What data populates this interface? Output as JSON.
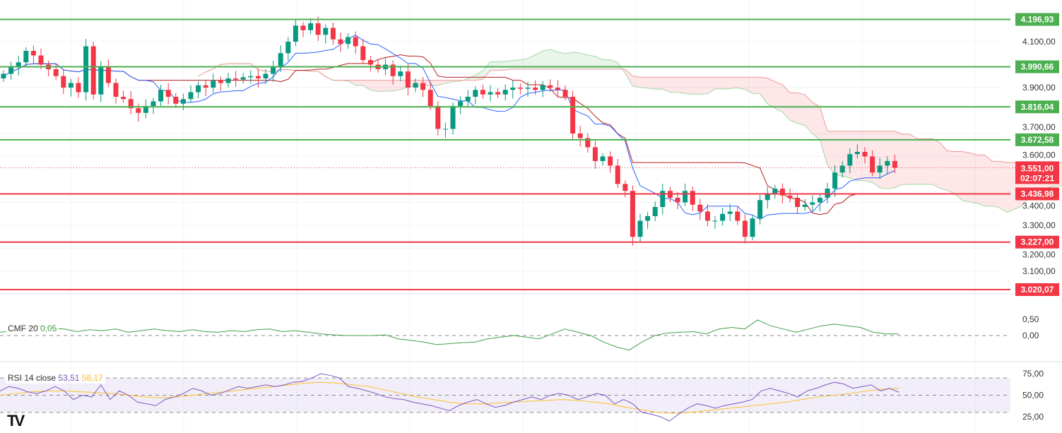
{
  "chart_data": {
    "type": "candlestick",
    "price_axis": {
      "ticks": [
        4100,
        3900,
        3700,
        3600,
        3400,
        3300,
        3200,
        3100
      ],
      "tick_labels": [
        "4.100,00",
        "3.900,00",
        "3.700,00",
        "3.600,00",
        "3.400,00",
        "3.300,00",
        "3.200,00",
        "3.100,00"
      ]
    },
    "closes": [
      3960,
      3990,
      4010,
      4060,
      4040,
      4000,
      3980,
      3950,
      3900,
      3920,
      3880,
      4080,
      3870,
      3990,
      3920,
      3860,
      3850,
      3810,
      3790,
      3820,
      3840,
      3890,
      3860,
      3830,
      3850,
      3880,
      3910,
      3900,
      3930,
      3920,
      3940,
      3935,
      3945,
      3950,
      3940,
      3960,
      3990,
      4050,
      4100,
      4170,
      4150,
      4180,
      4130,
      4160,
      4110,
      4090,
      4120,
      4080,
      4020,
      4000,
      3980,
      4000,
      3950,
      3970,
      3900,
      3920,
      3890,
      3820,
      3720,
      3720,
      3820,
      3840,
      3860,
      3890,
      3870,
      3880,
      3870,
      3890,
      3900,
      3895,
      3900,
      3890,
      3910,
      3900,
      3890,
      3860,
      3700,
      3680,
      3640,
      3580,
      3600,
      3560,
      3480,
      3450,
      3250,
      3320,
      3340,
      3380,
      3450,
      3420,
      3400,
      3450,
      3390,
      3360,
      3320,
      3320,
      3350,
      3360,
      3320,
      3250,
      3330,
      3410,
      3440,
      3460,
      3430,
      3420,
      3380,
      3390,
      3400,
      3420,
      3460,
      3530,
      3560,
      3610,
      3620,
      3600,
      3530,
      3560,
      3580,
      3551
    ],
    "levels": [
      {
        "value": 4196.93,
        "label": "4.196,93",
        "color": "#4caf50"
      },
      {
        "value": 3990.66,
        "label": "3.990,66",
        "color": "#4caf50"
      },
      {
        "value": 3816.04,
        "label": "3.816,04",
        "color": "#4caf50"
      },
      {
        "value": 3672.58,
        "label": "3.672,58",
        "color": "#4caf50"
      },
      {
        "value": 3436.98,
        "label": "3.436,98",
        "color": "#f23645"
      },
      {
        "value": 3227.0,
        "label": "3.227,00",
        "color": "#f23645"
      },
      {
        "value": 3020.07,
        "label": "3.020,07",
        "color": "#f23645"
      }
    ],
    "current_price": {
      "value": 3551,
      "label": "3.551,00",
      "countdown": "02:07:21",
      "color": "#f23645"
    },
    "cmf": {
      "title": "CMF 20",
      "value_label": "0,05",
      "ticks": [
        "0,50",
        "0,00"
      ],
      "values": [
        0.1,
        0.15,
        0.2,
        0.3,
        0.22,
        0.2,
        0.12,
        0.18,
        0.15,
        0.2,
        0.1,
        0.15,
        0.2,
        0.15,
        0.12,
        0.18,
        0.12,
        0.1,
        0.15,
        0.12,
        0.18,
        0.2,
        0.12,
        0.15,
        0.1,
        0.05,
        0.02,
        0.0,
        0.0,
        0.0,
        0.02,
        -0.1,
        -0.15,
        -0.2,
        -0.28,
        -0.25,
        -0.22,
        -0.2,
        -0.1,
        -0.05,
        0.0,
        -0.05,
        -0.1,
        0.05,
        0.2,
        0.1,
        0.0,
        -0.2,
        -0.35,
        -0.45,
        -0.2,
        0.0,
        0.08,
        0.1,
        0.12,
        0.05,
        0.2,
        0.25,
        0.2,
        0.48,
        0.3,
        0.2,
        0.1,
        0.2,
        0.3,
        0.35,
        0.3,
        0.25,
        0.1,
        0.05,
        0.05
      ]
    },
    "rsi": {
      "title": "RSI 14 close",
      "value_label": "53,51",
      "ma_label": "58,17",
      "ticks": [
        "75,00",
        "50,00",
        "25,00"
      ],
      "values": [
        55,
        60,
        58,
        54,
        52,
        55,
        60,
        55,
        45,
        50,
        48,
        62,
        45,
        55,
        50,
        42,
        40,
        38,
        45,
        48,
        52,
        58,
        55,
        50,
        52,
        56,
        60,
        58,
        60,
        62,
        60,
        62,
        65,
        66,
        70,
        75,
        73,
        70,
        60,
        58,
        55,
        52,
        48,
        46,
        45,
        42,
        40,
        38,
        35,
        32,
        38,
        42,
        45,
        40,
        36,
        38,
        42,
        45,
        48,
        45,
        50,
        52,
        50,
        45,
        48,
        52,
        50,
        40,
        45,
        40,
        30,
        28,
        25,
        20,
        28,
        35,
        40,
        38,
        35,
        38,
        40,
        42,
        45,
        55,
        58,
        55,
        52,
        48,
        55,
        58,
        62,
        65,
        63,
        58,
        60,
        62,
        55,
        58,
        53.5
      ],
      "ma": [
        50,
        52,
        54,
        55,
        55,
        54,
        53,
        52,
        50,
        48,
        47,
        48,
        50,
        52,
        54,
        56,
        58,
        60,
        62,
        64,
        65,
        64,
        62,
        60,
        56,
        52,
        48,
        45,
        42,
        40,
        40,
        41,
        42,
        43,
        44,
        45,
        44,
        42,
        40,
        36,
        33,
        30,
        29,
        30,
        32,
        34,
        36,
        38,
        40,
        42,
        45,
        48,
        50,
        52,
        55,
        57,
        58
      ]
    }
  }
}
